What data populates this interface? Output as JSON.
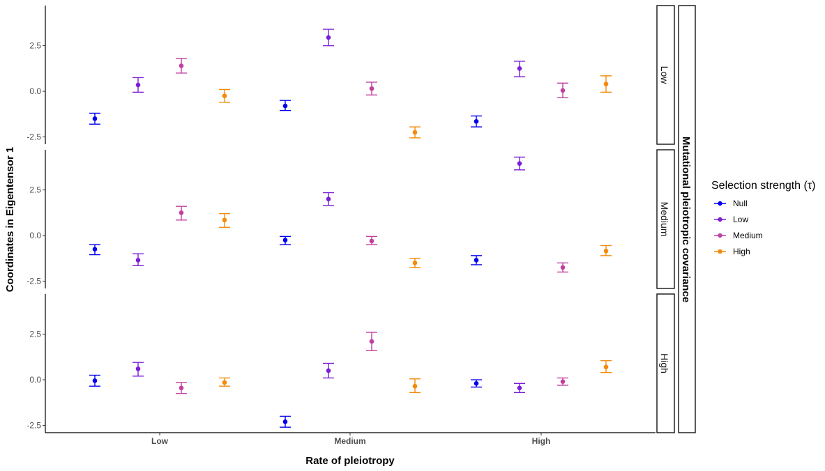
{
  "chart_data": {
    "type": "scatter",
    "subtype": "point-errorbar-faceted",
    "xlabel": "Rate of pleiotropy",
    "ylabel": "Coordinates in Eigentensor 1",
    "categories": [
      "Low",
      "Medium",
      "High"
    ],
    "yticks": [
      -2.5,
      0.0,
      2.5
    ],
    "ytick_labels": [
      "-2.5",
      "0.0",
      "2.5"
    ],
    "ylim": [
      -2.9,
      4.7
    ],
    "facet_title": "Mutational pleiotropic covariance",
    "facets": [
      "Low",
      "Medium",
      "High"
    ],
    "legend": {
      "title": "Selection strength (τ)",
      "position": "right",
      "entries": [
        "Null",
        "Low",
        "Medium",
        "High"
      ]
    },
    "colors": {
      "Null": "#0000ee",
      "Low": "#7a1fd6",
      "Medium": "#c040a0",
      "High": "#f58a0a"
    },
    "grid": false,
    "panels": [
      {
        "facet": "Low",
        "series": [
          {
            "name": "Null",
            "values": [
              -1.5,
              -0.8,
              -1.65
            ],
            "lower": [
              -1.8,
              -1.05,
              -1.95
            ],
            "upper": [
              -1.2,
              -0.5,
              -1.35
            ]
          },
          {
            "name": "Low",
            "values": [
              0.35,
              2.95,
              1.25
            ],
            "lower": [
              -0.05,
              2.5,
              0.8
            ],
            "upper": [
              0.75,
              3.4,
              1.65
            ]
          },
          {
            "name": "Medium",
            "values": [
              1.4,
              0.15,
              0.05
            ],
            "lower": [
              1.0,
              -0.2,
              -0.35
            ],
            "upper": [
              1.8,
              0.5,
              0.45
            ]
          },
          {
            "name": "High",
            "values": [
              -0.25,
              -2.25,
              0.4
            ],
            "lower": [
              -0.6,
              -2.55,
              -0.05
            ],
            "upper": [
              0.1,
              -1.95,
              0.85
            ]
          }
        ]
      },
      {
        "facet": "Medium",
        "series": [
          {
            "name": "Null",
            "values": [
              -0.75,
              -0.25,
              -1.35
            ],
            "lower": [
              -1.05,
              -0.5,
              -1.6
            ],
            "upper": [
              -0.5,
              -0.05,
              -1.1
            ]
          },
          {
            "name": "Low",
            "values": [
              -1.35,
              2.0,
              3.95
            ],
            "lower": [
              -1.65,
              1.65,
              3.6
            ],
            "upper": [
              -1.0,
              2.35,
              4.3
            ]
          },
          {
            "name": "Medium",
            "values": [
              1.25,
              -0.3,
              -1.75
            ],
            "lower": [
              0.85,
              -0.5,
              -2.0
            ],
            "upper": [
              1.6,
              -0.05,
              -1.5
            ]
          },
          {
            "name": "High",
            "values": [
              0.85,
              -1.5,
              -0.85
            ],
            "lower": [
              0.45,
              -1.75,
              -1.1
            ],
            "upper": [
              1.2,
              -1.25,
              -0.55
            ]
          }
        ]
      },
      {
        "facet": "High",
        "series": [
          {
            "name": "Null",
            "values": [
              -0.05,
              -2.3,
              -0.2
            ],
            "lower": [
              -0.35,
              -2.6,
              -0.4
            ],
            "upper": [
              0.25,
              -2.0,
              0.0
            ]
          },
          {
            "name": "Low",
            "values": [
              0.6,
              0.5,
              -0.45
            ],
            "lower": [
              0.2,
              0.1,
              -0.7
            ],
            "upper": [
              0.95,
              0.9,
              -0.2
            ]
          },
          {
            "name": "Medium",
            "values": [
              -0.45,
              2.1,
              -0.1
            ],
            "lower": [
              -0.75,
              1.6,
              -0.3
            ],
            "upper": [
              -0.15,
              2.6,
              0.1
            ]
          },
          {
            "name": "High",
            "values": [
              -0.15,
              -0.35,
              0.7
            ],
            "lower": [
              -0.35,
              -0.7,
              0.4
            ],
            "upper": [
              0.1,
              0.05,
              1.05
            ]
          }
        ]
      }
    ]
  }
}
